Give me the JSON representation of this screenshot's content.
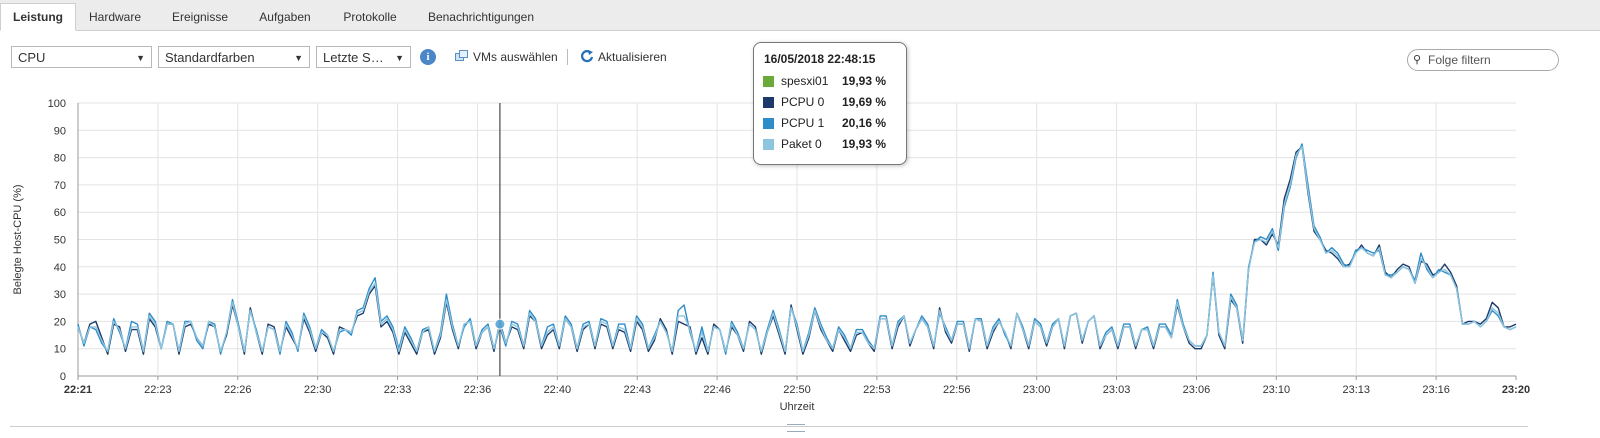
{
  "tabs": [
    {
      "label": "Leistung",
      "active": true
    },
    {
      "label": "Hardware"
    },
    {
      "label": "Ereignisse"
    },
    {
      "label": "Aufgaben"
    },
    {
      "label": "Protokolle"
    },
    {
      "label": "Benachrichtigungen"
    }
  ],
  "toolbar": {
    "metric_select": "CPU",
    "color_select": "Standardfarben",
    "time_select": "Letzte S…",
    "info_icon": "info-icon",
    "vms_label": "VMs auswählen",
    "refresh_label": "Aktualisieren",
    "search_placeholder": "Folge filtern"
  },
  "tooltip": {
    "timestamp": "16/05/2018 22:48:15",
    "rows": [
      {
        "name": "spesxi01",
        "value": "19,93 %",
        "color": "#6aaa3a"
      },
      {
        "name": "PCPU 0",
        "value": "19,69 %",
        "color": "#1b3a6b"
      },
      {
        "name": "PCPU 1",
        "value": "20,16 %",
        "color": "#2e8cc9"
      },
      {
        "name": "Paket 0",
        "value": "19,93 %",
        "color": "#8ec5de"
      }
    ]
  },
  "chart_data": {
    "type": "line",
    "ylabel": "Belegte Host-CPU (%)",
    "xlabel": "Uhrzeit",
    "ylim": [
      0,
      100
    ],
    "yticks": [
      0,
      10,
      20,
      30,
      40,
      50,
      60,
      70,
      80,
      90,
      100
    ],
    "xticks": [
      {
        "label": "22:21",
        "bold": true
      },
      {
        "label": "22:23"
      },
      {
        "label": "22:26"
      },
      {
        "label": "22:30"
      },
      {
        "label": "22:33"
      },
      {
        "label": "22:36"
      },
      {
        "label": "22:40"
      },
      {
        "label": "22:43"
      },
      {
        "label": "22:46"
      },
      {
        "label": "22:50"
      },
      {
        "label": "22:53"
      },
      {
        "label": "22:56"
      },
      {
        "label": "23:00"
      },
      {
        "label": "23:03"
      },
      {
        "label": "23:06"
      },
      {
        "label": "23:10"
      },
      {
        "label": "23:13"
      },
      {
        "label": "23:16"
      },
      {
        "label": "23:20",
        "bold": true
      }
    ],
    "grid": true,
    "cursor_index": 71,
    "series": [
      {
        "name": "PCPU 0",
        "color": "#1b3a6b",
        "values": [
          18,
          12,
          19,
          20,
          14,
          8,
          19,
          18,
          9,
          17,
          17,
          8,
          21,
          18,
          10,
          19,
          19,
          8,
          18,
          19,
          14,
          11,
          19,
          18,
          9,
          15,
          26,
          18,
          8,
          25,
          16,
          8,
          19,
          18,
          9,
          18,
          14,
          10,
          21,
          16,
          9,
          16,
          14,
          8,
          18,
          17,
          16,
          22,
          23,
          30,
          33,
          18,
          20,
          16,
          8,
          16,
          12,
          8,
          16,
          17,
          8,
          14,
          27,
          17,
          10,
          19,
          20,
          10,
          16,
          18,
          9,
          20,
          12,
          18,
          17,
          10,
          22,
          20,
          10,
          15,
          17,
          10,
          21,
          18,
          9,
          17,
          19,
          10,
          19,
          18,
          10,
          17,
          16,
          9,
          20,
          17,
          9,
          13,
          21,
          17,
          8,
          20,
          19,
          18,
          8,
          14,
          8,
          19,
          17,
          9,
          18,
          15,
          9,
          20,
          18,
          8,
          16,
          22,
          15,
          8,
          26,
          17,
          8,
          14,
          24,
          17,
          13,
          9,
          17,
          13,
          9,
          15,
          16,
          12,
          9,
          21,
          21,
          10,
          18,
          22,
          11,
          17,
          21,
          18,
          10,
          25,
          16,
          12,
          19,
          19,
          9,
          21,
          20,
          10,
          16,
          20,
          16,
          10,
          23,
          17,
          10,
          20,
          18,
          11,
          18,
          21,
          10,
          22,
          23,
          12,
          20,
          22,
          10,
          15,
          17,
          10,
          18,
          18,
          10,
          17,
          17,
          10,
          18,
          18,
          14,
          26,
          18,
          12,
          10,
          10,
          15,
          37,
          15,
          10,
          28,
          25,
          12,
          39,
          50,
          50,
          48,
          52,
          48,
          65,
          72,
          82,
          84,
          67,
          53,
          50,
          46,
          45,
          43,
          40,
          41,
          45,
          48,
          45,
          44,
          48,
          38,
          36,
          39,
          41,
          40,
          34,
          42,
          41,
          37,
          38,
          41,
          38,
          33,
          19,
          20,
          20,
          19,
          21,
          27,
          25,
          18,
          18,
          19
        ]
      },
      {
        "name": "PCPU 1",
        "color": "#2e8cc9",
        "values": [
          19,
          11,
          18,
          17,
          12,
          9,
          21,
          16,
          10,
          20,
          19,
          9,
          23,
          20,
          10,
          20,
          19,
          9,
          20,
          20,
          13,
          10,
          20,
          19,
          8,
          16,
          28,
          19,
          9,
          24,
          17,
          9,
          18,
          17,
          8,
          20,
          16,
          9,
          23,
          18,
          10,
          17,
          15,
          9,
          16,
          17,
          15,
          24,
          25,
          32,
          36,
          20,
          22,
          18,
          10,
          18,
          14,
          9,
          17,
          18,
          9,
          16,
          30,
          19,
          11,
          18,
          21,
          11,
          17,
          19,
          10,
          18,
          11,
          20,
          19,
          11,
          24,
          21,
          11,
          18,
          19,
          11,
          22,
          19,
          10,
          19,
          20,
          11,
          21,
          20,
          11,
          19,
          19,
          10,
          22,
          19,
          10,
          15,
          20,
          16,
          9,
          24,
          26,
          16,
          9,
          18,
          9,
          18,
          17,
          8,
          20,
          16,
          10,
          19,
          17,
          9,
          17,
          24,
          17,
          9,
          25,
          19,
          9,
          16,
          25,
          19,
          14,
          10,
          18,
          15,
          10,
          17,
          17,
          13,
          10,
          22,
          22,
          11,
          20,
          22,
          12,
          17,
          22,
          19,
          11,
          23,
          18,
          13,
          20,
          20,
          10,
          21,
          21,
          11,
          18,
          21,
          15,
          11,
          23,
          18,
          11,
          21,
          19,
          12,
          19,
          21,
          11,
          22,
          23,
          13,
          20,
          22,
          11,
          16,
          18,
          11,
          19,
          19,
          11,
          17,
          18,
          11,
          19,
          19,
          15,
          28,
          19,
          13,
          11,
          11,
          15,
          38,
          16,
          11,
          30,
          26,
          13,
          40,
          49,
          51,
          50,
          54,
          46,
          62,
          69,
          80,
          85,
          70,
          55,
          51,
          45,
          47,
          45,
          41,
          40,
          46,
          47,
          46,
          45,
          46,
          37,
          37,
          38,
          40,
          39,
          35,
          45,
          39,
          36,
          39,
          38,
          37,
          32,
          19,
          19,
          20,
          18,
          20,
          24,
          22,
          18,
          17,
          18
        ]
      },
      {
        "name": "Paket 0",
        "color": "#8ec5de",
        "values": [
          18,
          12,
          18,
          18,
          13,
          9,
          20,
          17,
          10,
          18,
          18,
          9,
          22,
          19,
          10,
          19,
          19,
          9,
          19,
          20,
          14,
          11,
          20,
          18,
          9,
          16,
          27,
          18,
          9,
          24,
          16,
          9,
          18,
          17,
          9,
          19,
          15,
          10,
          22,
          17,
          10,
          16,
          15,
          9,
          17,
          17,
          16,
          23,
          24,
          31,
          34,
          19,
          21,
          17,
          9,
          17,
          13,
          9,
          16,
          18,
          9,
          15,
          28,
          18,
          11,
          19,
          20,
          11,
          16,
          18,
          10,
          19,
          12,
          19,
          18,
          11,
          23,
          20,
          11,
          16,
          18,
          11,
          21,
          18,
          10,
          18,
          19,
          11,
          20,
          19,
          11,
          18,
          17,
          10,
          21,
          18,
          10,
          14,
          20,
          16,
          9,
          22,
          22,
          17,
          9,
          16,
          9,
          18,
          17,
          9,
          19,
          15,
          10,
          19,
          17,
          9,
          16,
          23,
          16,
          9,
          25,
          18,
          9,
          15,
          24,
          18,
          13,
          10,
          17,
          14,
          10,
          16,
          16,
          12,
          10,
          21,
          21,
          11,
          19,
          22,
          12,
          17,
          21,
          18,
          11,
          24,
          17,
          13,
          19,
          19,
          10,
          21,
          20,
          11,
          17,
          20,
          16,
          11,
          23,
          17,
          11,
          20,
          18,
          12,
          18,
          21,
          11,
          22,
          23,
          13,
          20,
          22,
          11,
          15,
          17,
          11,
          18,
          18,
          11,
          17,
          17,
          11,
          18,
          18,
          14,
          27,
          18,
          13,
          11,
          11,
          15,
          37,
          16,
          11,
          29,
          25,
          13,
          39,
          49,
          50,
          49,
          53,
          47,
          63,
          70,
          81,
          84,
          68,
          54,
          50,
          45,
          46,
          44,
          40,
          40,
          45,
          47,
          45,
          44,
          47,
          37,
          36,
          38,
          40,
          39,
          34,
          43,
          40,
          36,
          38,
          39,
          37,
          32,
          19,
          19,
          20,
          18,
          20,
          25,
          23,
          18,
          17,
          18
        ]
      }
    ]
  }
}
